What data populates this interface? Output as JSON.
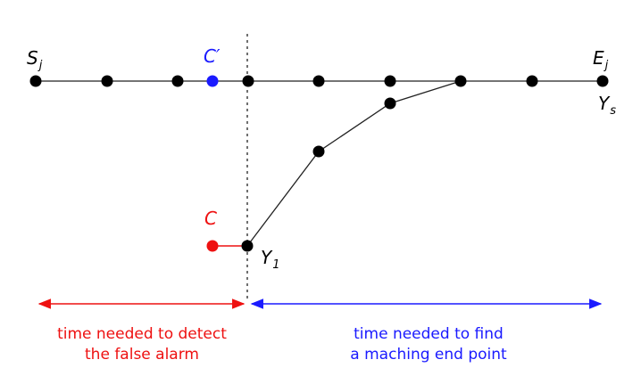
{
  "labels": {
    "start": {
      "main": "S",
      "sub": "j"
    },
    "end": {
      "main": "E",
      "sub": "j"
    },
    "ys": {
      "main": "Y",
      "sub": "s"
    },
    "y1": {
      "main": "Y",
      "sub": "1"
    },
    "c_prime": "C′",
    "c": "C"
  },
  "captions": {
    "left": [
      "time needed to detect",
      "the false alarm"
    ],
    "right": [
      "time needed to find",
      "a maching end point"
    ]
  },
  "colors": {
    "line": "#222222",
    "node": "#000000",
    "blue": "#1a1aff",
    "red": "#ee1111"
  }
}
